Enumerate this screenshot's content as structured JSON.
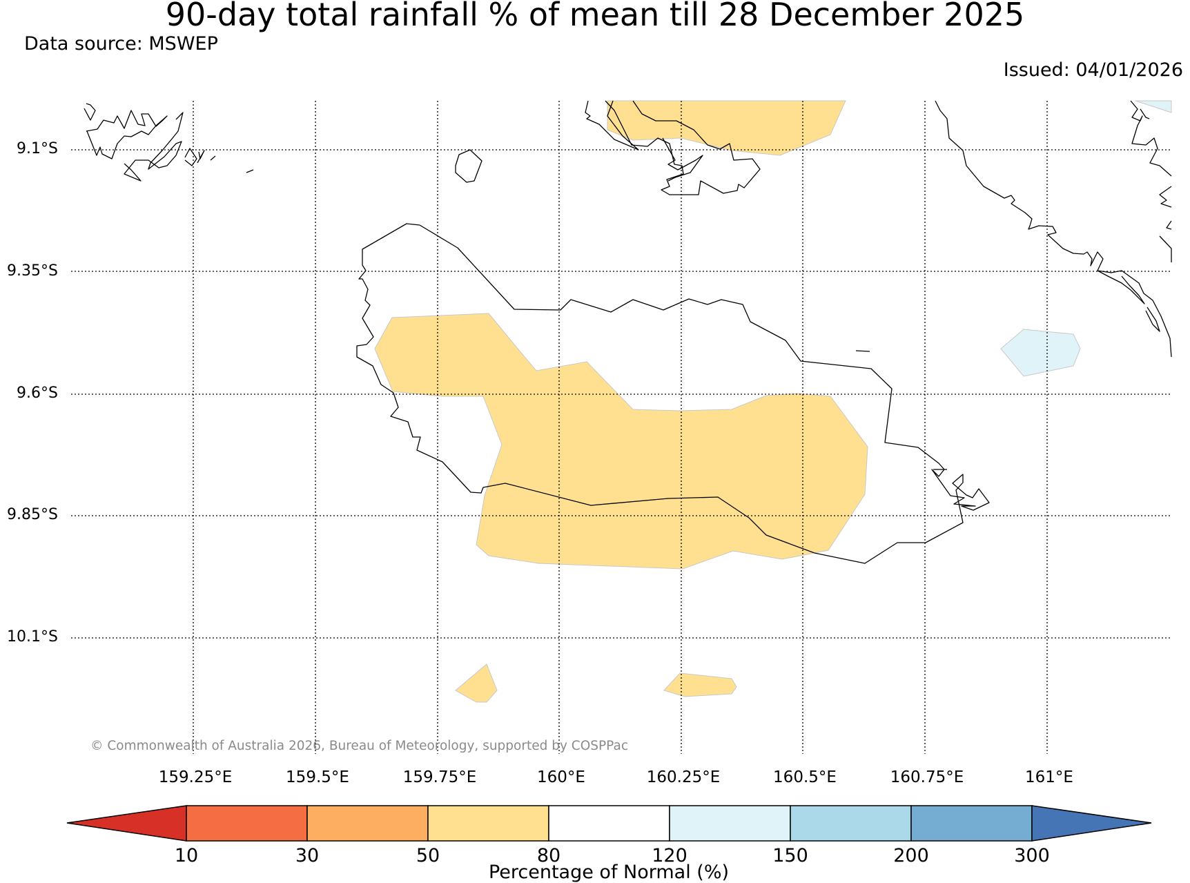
{
  "title": "90-day total rainfall % of mean till 28 December 2025",
  "data_source": "Data source: MSWEP",
  "issued": "Issued: 04/01/2026",
  "copyright": "© Commonwealth of Australia 2026, Bureau of Meteorology, supported by COSPPac",
  "map": {
    "latitude_labels": [
      "9.1°S",
      "9.35°S",
      "9.6°S",
      "9.85°S",
      "10.1°S"
    ],
    "longitude_labels": [
      "159.25°E",
      "159.5°E",
      "159.75°E",
      "160°E",
      "160.25°E",
      "160.5°E",
      "160.75°E",
      "161°E"
    ],
    "legend": {
      "title": "Percentage of Normal (%)",
      "ticks": [
        "10",
        "30",
        "50",
        "80",
        "120",
        "150",
        "200",
        "300"
      ],
      "colors": [
        "#d73027",
        "#f46d43",
        "#fdae61",
        "#fee090",
        "#ffffff",
        "#e0f3f8",
        "#abd9e9",
        "#74add1",
        "#4575b4"
      ]
    },
    "shaded_regions": [
      {
        "category": "50-80",
        "location": "central Guadalcanal"
      },
      {
        "category": "50-80",
        "location": "southern Florida Islands"
      },
      {
        "category": "50-80",
        "location": "south-west offshore"
      },
      {
        "category": "50-80",
        "location": "south offshore"
      },
      {
        "category": "120-150",
        "location": "east offshore"
      },
      {
        "category": "120-150",
        "location": "north-east corner"
      }
    ]
  }
}
